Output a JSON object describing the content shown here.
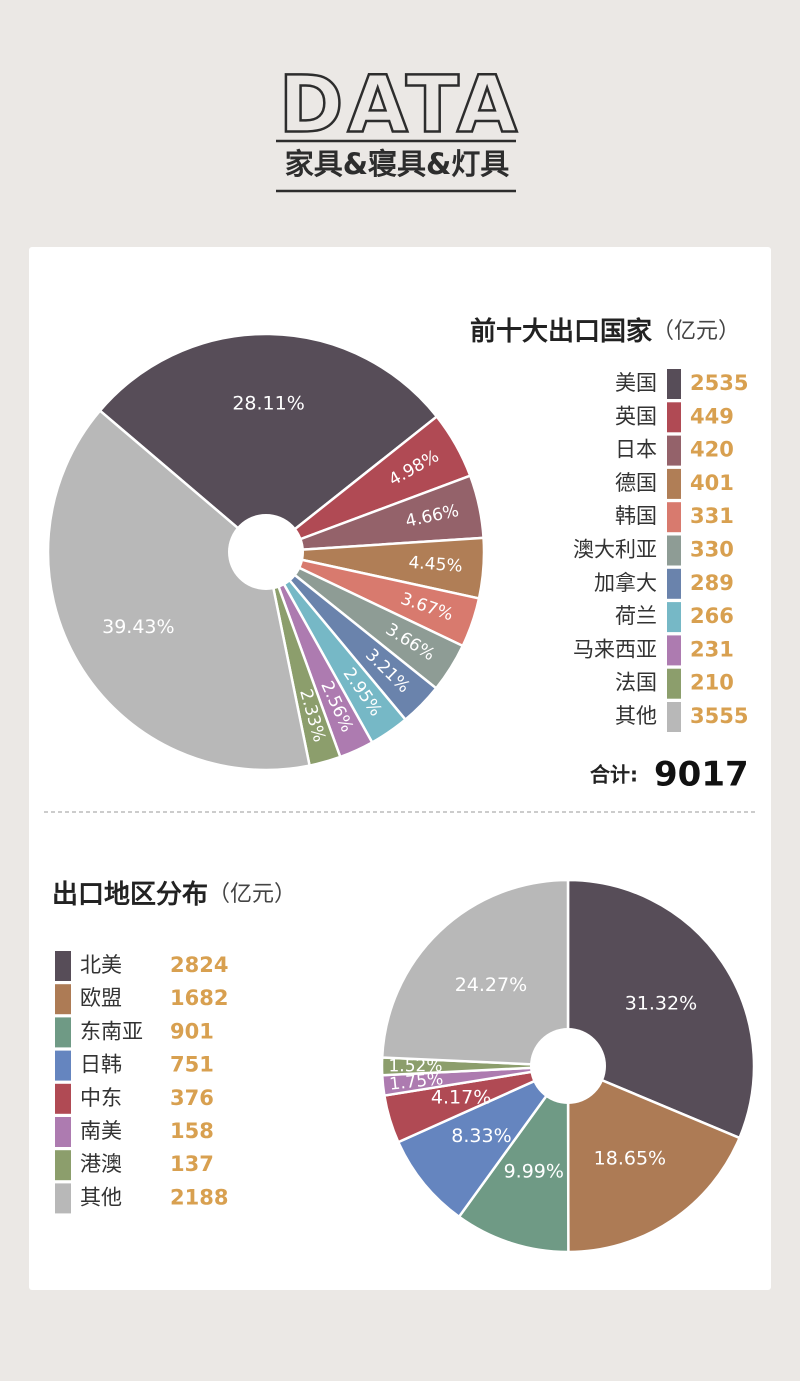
{
  "header": {
    "title": "DATA",
    "subtitle": "家具&寝具&灯具"
  },
  "chart_data": [
    {
      "type": "pie",
      "title": "前十大出口国家",
      "unit": "（亿元）",
      "categories": [
        "美国",
        "英国",
        "日本",
        "德国",
        "韩国",
        "澳大利亚",
        "加拿大",
        "荷兰",
        "马来西亚",
        "法国",
        "其他"
      ],
      "values": [
        2535,
        449,
        420,
        401,
        331,
        330,
        289,
        266,
        231,
        210,
        3555
      ],
      "shares": [
        28.11,
        4.98,
        4.66,
        4.45,
        3.67,
        3.66,
        3.21,
        2.95,
        2.56,
        2.33,
        39.43
      ],
      "share_labels": [
        "28.11%",
        "4.98%",
        "4.66%",
        "4.45%",
        "3.67%",
        "3.66%",
        "3.21%",
        "2.95%",
        "2.56%",
        "2.33%",
        "39.43%"
      ],
      "colors": [
        "#574d58",
        "#b04a54",
        "#94626a",
        "#b07e56",
        "#d87a6e",
        "#8e9c95",
        "#6a83ac",
        "#76b8c6",
        "#ad7bb0",
        "#8c9e6c",
        "#b8b8b8"
      ],
      "total_label": "合计:",
      "total": 9017
    },
    {
      "type": "pie",
      "title": "出口地区分布",
      "unit": "（亿元）",
      "categories": [
        "北美",
        "欧盟",
        "东南亚",
        "日韩",
        "中东",
        "南美",
        "港澳",
        "其他"
      ],
      "values": [
        2824,
        1682,
        901,
        751,
        376,
        158,
        137,
        2188
      ],
      "shares": [
        31.32,
        18.65,
        9.99,
        8.33,
        4.17,
        1.75,
        1.52,
        24.27
      ],
      "share_labels": [
        "31.32%",
        "18.65%",
        "9.99%",
        "8.33%",
        "4.17%",
        "1.75%",
        "1.52%",
        "24.27%"
      ],
      "colors": [
        "#574d58",
        "#ad7b55",
        "#6f9a85",
        "#6585bf",
        "#b04a54",
        "#ad7bb0",
        "#8c9e6c",
        "#b8b8b8"
      ]
    }
  ]
}
